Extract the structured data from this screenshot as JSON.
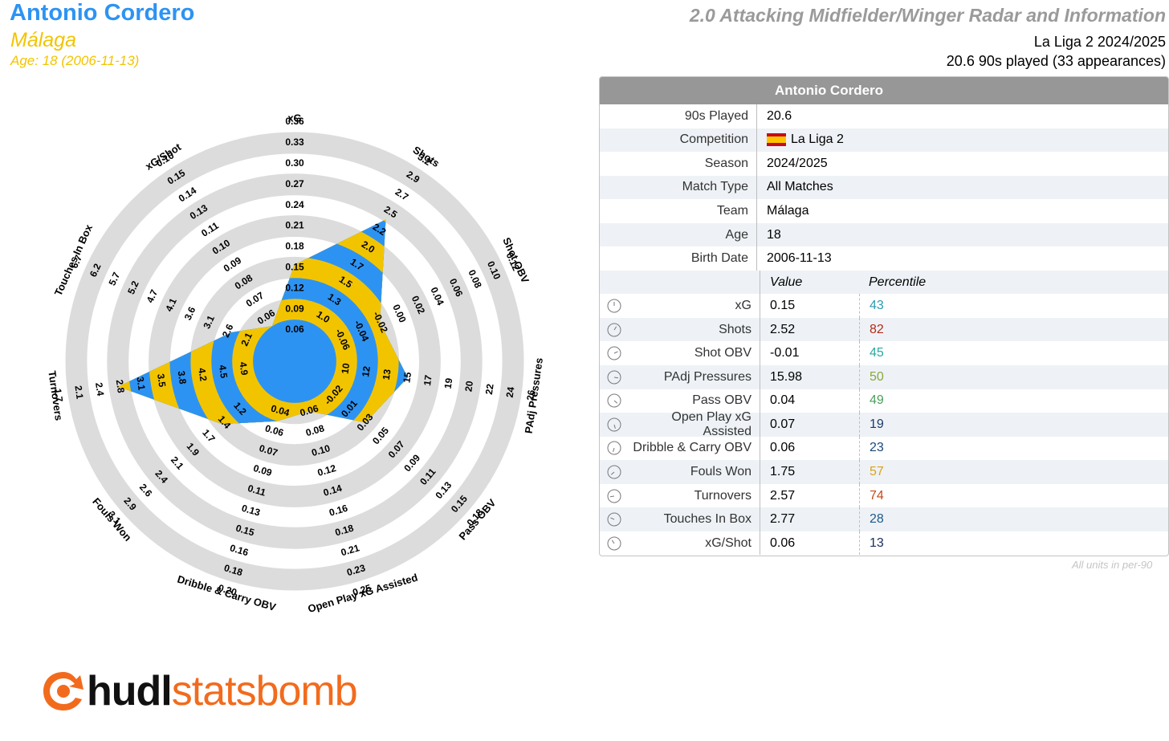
{
  "header": {
    "player_name": "Antonio Cordero",
    "team": "Málaga",
    "age_line": "Age: 18 (2006-11-13)",
    "title": "2.0 Attacking Midfielder/Winger Radar and Information",
    "competition_line": "La Liga 2 2024/2025",
    "played_line": "20.6 90s played (33 appearances)"
  },
  "colors": {
    "blue": "#2d93f3",
    "yellow": "#f2c400",
    "ring": "#dcdcdc"
  },
  "chart_data": {
    "type": "radar",
    "metrics": [
      {
        "name": "xG",
        "value": 0.15,
        "ticks": [
          "0.06",
          "0.09",
          "0.12",
          "0.15",
          "0.18",
          "0.21",
          "0.24",
          "0.27",
          "0.30",
          "0.33",
          "0.36"
        ]
      },
      {
        "name": "Shots",
        "value": 2.52,
        "ticks": [
          "1.0",
          "1.3",
          "1.5",
          "1.7",
          "2.0",
          "2.2",
          "2.5",
          "2.7",
          "2.9",
          "3.2"
        ]
      },
      {
        "name": "Shot OBV",
        "value": -0.01,
        "ticks": [
          "-0.06",
          "-0.04",
          "-0.02",
          "0.00",
          "0.02",
          "0.04",
          "0.06",
          "0.08",
          "0.10",
          "0.12"
        ]
      },
      {
        "name": "PAdj Pressures",
        "value": 15.98,
        "ticks": [
          "10",
          "12",
          "13",
          "15",
          "17",
          "19",
          "20",
          "22",
          "24",
          "26"
        ]
      },
      {
        "name": "Pass OBV",
        "value": 0.04,
        "ticks": [
          "-0.02",
          "0.01",
          "0.03",
          "0.05",
          "0.07",
          "0.09",
          "0.11",
          "0.13",
          "0.15",
          "0.18"
        ]
      },
      {
        "name": "Open Play xG Assisted",
        "value": 0.07,
        "ticks": [
          "0.06",
          "0.08",
          "0.10",
          "0.12",
          "0.14",
          "0.16",
          "0.18",
          "0.21",
          "0.23",
          "0.25"
        ]
      },
      {
        "name": "Dribble & Carry OBV",
        "value": 0.06,
        "ticks": [
          "0.04",
          "0.06",
          "0.07",
          "0.09",
          "0.11",
          "0.13",
          "0.15",
          "0.16",
          "0.18",
          "0.20"
        ]
      },
      {
        "name": "Fouls Won",
        "value": 1.75,
        "ticks": [
          "1.2",
          "1.4",
          "1.7",
          "1.9",
          "2.1",
          "2.4",
          "2.6",
          "2.9",
          "3.1"
        ]
      },
      {
        "name": "Turnovers",
        "value": 2.57,
        "ticks": [
          "4.9",
          "4.5",
          "4.2",
          "3.8",
          "3.5",
          "3.1",
          "2.8",
          "2.4",
          "2.1",
          "1.7"
        ]
      },
      {
        "name": "Touches In Box",
        "value": 2.77,
        "ticks": [
          "2.1",
          "2.6",
          "3.1",
          "3.6",
          "4.1",
          "4.7",
          "5.2",
          "5.7",
          "6.2",
          "6.7"
        ]
      },
      {
        "name": "xG/Shot",
        "value": 0.06,
        "ticks": [
          "0.06",
          "0.07",
          "0.08",
          "0.09",
          "0.10",
          "0.11",
          "0.13",
          "0.14",
          "0.15",
          "0.16"
        ]
      }
    ]
  },
  "table": {
    "header": "Antonio Cordero",
    "info": [
      {
        "label": "90s Played",
        "value": "20.6"
      },
      {
        "label": "Competition",
        "value": "La Liga 2",
        "flag": true
      },
      {
        "label": "Season",
        "value": "2024/2025"
      },
      {
        "label": "Match Type",
        "value": "All Matches"
      },
      {
        "label": "Team",
        "value": "Málaga"
      },
      {
        "label": "Age",
        "value": "18"
      },
      {
        "label": "Birth Date",
        "value": "2006-11-13"
      }
    ],
    "value_head": "Value",
    "percentile_head": "Percentile",
    "stats": [
      {
        "label": "xG",
        "value": "0.15",
        "pct": "43",
        "color": "#2a9bb0"
      },
      {
        "label": "Shots",
        "value": "2.52",
        "pct": "82",
        "color": "#b32a1a"
      },
      {
        "label": "Shot OBV",
        "value": "-0.01",
        "pct": "45",
        "color": "#2aa8a0"
      },
      {
        "label": "PAdj Pressures",
        "value": "15.98",
        "pct": "50",
        "color": "#8aa83a"
      },
      {
        "label": "Pass OBV",
        "value": "0.04",
        "pct": "49",
        "color": "#4aa05a"
      },
      {
        "label": "Open Play xG Assisted",
        "value": "0.07",
        "pct": "19",
        "color": "#1b3a6b"
      },
      {
        "label": "Dribble & Carry OBV",
        "value": "0.06",
        "pct": "23",
        "color": "#1b4878"
      },
      {
        "label": "Fouls Won",
        "value": "1.75",
        "pct": "57",
        "color": "#d9a21b"
      },
      {
        "label": "Turnovers",
        "value": "2.57",
        "pct": "74",
        "color": "#c44a1a"
      },
      {
        "label": "Touches In Box",
        "value": "2.77",
        "pct": "28",
        "color": "#1d5a8a"
      },
      {
        "label": "xG/Shot",
        "value": "0.06",
        "pct": "13",
        "color": "#1b2f60"
      }
    ],
    "units_note": "All units in per-90"
  },
  "logo": {
    "part1": "hudl",
    "part2": "statsbomb"
  }
}
